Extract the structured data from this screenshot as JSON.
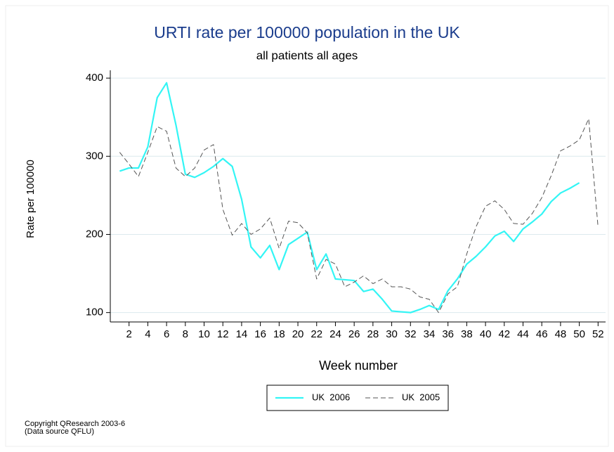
{
  "chart_data": {
    "type": "line",
    "title": "URTI rate per 100000 population in the UK",
    "subtitle": "all patients all ages",
    "x_label": "Week number",
    "y_label": "Rate per 100000",
    "x": [
      1,
      2,
      3,
      4,
      5,
      6,
      7,
      8,
      9,
      10,
      11,
      12,
      13,
      14,
      15,
      16,
      17,
      18,
      19,
      20,
      21,
      22,
      23,
      24,
      25,
      26,
      27,
      28,
      29,
      30,
      31,
      32,
      33,
      34,
      35,
      36,
      37,
      38,
      39,
      40,
      41,
      42,
      43,
      44,
      45,
      46,
      47,
      48,
      49,
      50,
      51,
      52
    ],
    "series": [
      {
        "name": "UK  2006",
        "color": "#33f5f5",
        "dashed": false,
        "values": [
          281,
          285,
          285,
          312,
          375,
          394,
          340,
          277,
          273,
          279,
          287,
          297,
          287,
          245,
          184,
          170,
          186,
          155,
          187,
          195,
          203,
          155,
          175,
          143,
          142,
          141,
          127,
          130,
          117,
          102,
          101,
          100,
          104,
          109,
          104,
          128,
          143,
          162,
          172,
          184,
          198,
          204,
          191,
          207,
          216,
          226,
          242,
          253,
          259,
          266,
          null,
          null
        ]
      },
      {
        "name": "UK  2005",
        "color": "#555555",
        "dashed": true,
        "values": [
          305,
          290,
          274,
          305,
          338,
          332,
          285,
          274,
          285,
          308,
          315,
          232,
          199,
          214,
          200,
          207,
          221,
          182,
          217,
          215,
          202,
          143,
          168,
          162,
          133,
          139,
          147,
          137,
          143,
          133,
          133,
          130,
          120,
          117,
          100,
          124,
          133,
          175,
          210,
          236,
          243,
          232,
          214,
          213,
          227,
          247,
          275,
          307,
          313,
          321,
          348,
          209
        ]
      }
    ],
    "xlim": [
      0,
      52.8
    ],
    "ylim": [
      88,
      410
    ],
    "xticks": [
      2,
      4,
      6,
      8,
      10,
      12,
      14,
      16,
      18,
      20,
      22,
      24,
      26,
      28,
      30,
      32,
      34,
      36,
      38,
      40,
      42,
      44,
      46,
      48,
      50,
      52
    ],
    "yticks": [
      100,
      200,
      300,
      400
    ],
    "grid": true,
    "notes": [
      "Copyright QResearch 2003-6",
      "(Data source QFLU)"
    ]
  }
}
